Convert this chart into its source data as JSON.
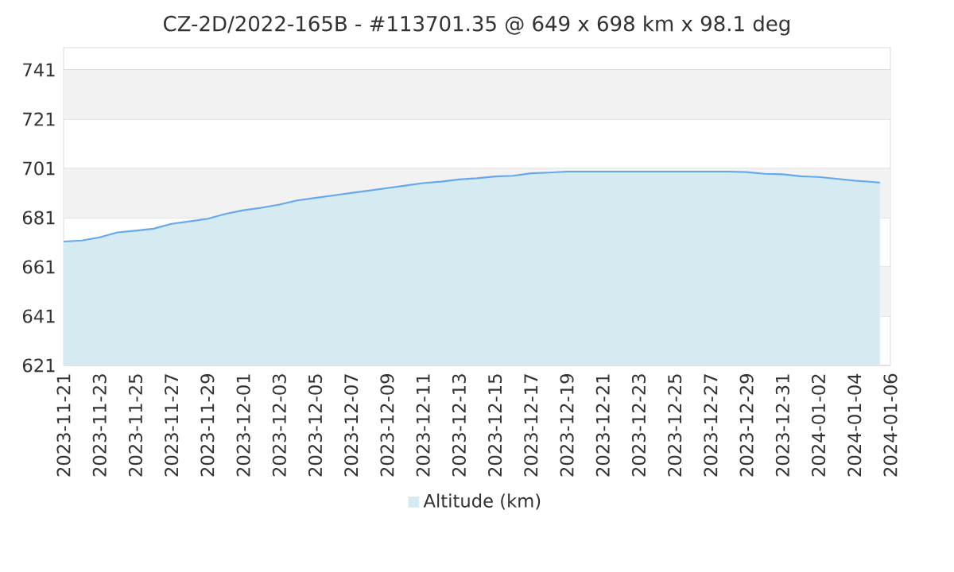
{
  "chart_data": {
    "type": "area",
    "title": "CZ-2D/2022-165B - #113701.35 @ 649 x 698 km x 98.1 deg",
    "x": [
      "2023-11-21",
      "2023-11-22",
      "2023-11-23",
      "2023-11-24",
      "2023-11-25",
      "2023-11-26",
      "2023-11-27",
      "2023-11-28",
      "2023-11-29",
      "2023-11-30",
      "2023-12-01",
      "2023-12-02",
      "2023-12-03",
      "2023-12-04",
      "2023-12-05",
      "2023-12-06",
      "2023-12-07",
      "2023-12-08",
      "2023-12-09",
      "2023-12-10",
      "2023-12-11",
      "2023-12-12",
      "2023-12-13",
      "2023-12-14",
      "2023-12-15",
      "2023-12-16",
      "2023-12-17",
      "2023-12-18",
      "2023-12-19",
      "2023-12-20",
      "2023-12-21",
      "2023-12-22",
      "2023-12-23",
      "2023-12-24",
      "2023-12-25",
      "2023-12-26",
      "2023-12-27",
      "2023-12-28",
      "2023-12-29",
      "2023-12-30",
      "2023-12-31",
      "2024-01-01",
      "2024-01-02",
      "2024-01-03",
      "2024-01-04",
      "2024-01-05",
      "2024-01-05T10:00"
    ],
    "series": [
      {
        "name": "Altitude (km)",
        "color": "#d5eaf1",
        "values": [
          671.3,
          671.7,
          673,
          675,
          675.7,
          676.5,
          678.5,
          679.5,
          680.5,
          682.5,
          684,
          685,
          686.3,
          688,
          689,
          690,
          691,
          692,
          693,
          694,
          695,
          695.6,
          696.5,
          697,
          697.7,
          698,
          699,
          699.3,
          699.7,
          699.7,
          699.7,
          699.7,
          699.7,
          699.7,
          699.7,
          699.7,
          699.7,
          699.7,
          699.5,
          698.8,
          698.6,
          697.8,
          697.5,
          696.8,
          696,
          695.5,
          695.2
        ]
      }
    ],
    "xlim": [
      "2023-11-21",
      "2024-01-06"
    ],
    "xticks": [
      "2023-11-21",
      "2023-11-23",
      "2023-11-25",
      "2023-11-27",
      "2023-11-29",
      "2023-12-01",
      "2023-12-03",
      "2023-12-05",
      "2023-12-07",
      "2023-12-09",
      "2023-12-11",
      "2023-12-13",
      "2023-12-15",
      "2023-12-17",
      "2023-12-19",
      "2023-12-21",
      "2023-12-23",
      "2023-12-25",
      "2023-12-27",
      "2023-12-29",
      "2023-12-31",
      "2024-01-02",
      "2024-01-04",
      "2024-01-06"
    ],
    "ylim": [
      621,
      750
    ],
    "yticks": [
      621,
      641,
      661,
      681,
      701,
      721,
      741
    ],
    "bands": [
      {
        "axis": "y",
        "from": 641,
        "to": 661,
        "color": "#f2f2f2"
      },
      {
        "axis": "y",
        "from": 681,
        "to": 701,
        "color": "#f2f2f2"
      },
      {
        "axis": "y",
        "from": 721,
        "to": 741,
        "color": "#f2f2f2"
      }
    ],
    "grid": "y",
    "legend": "bottom"
  }
}
